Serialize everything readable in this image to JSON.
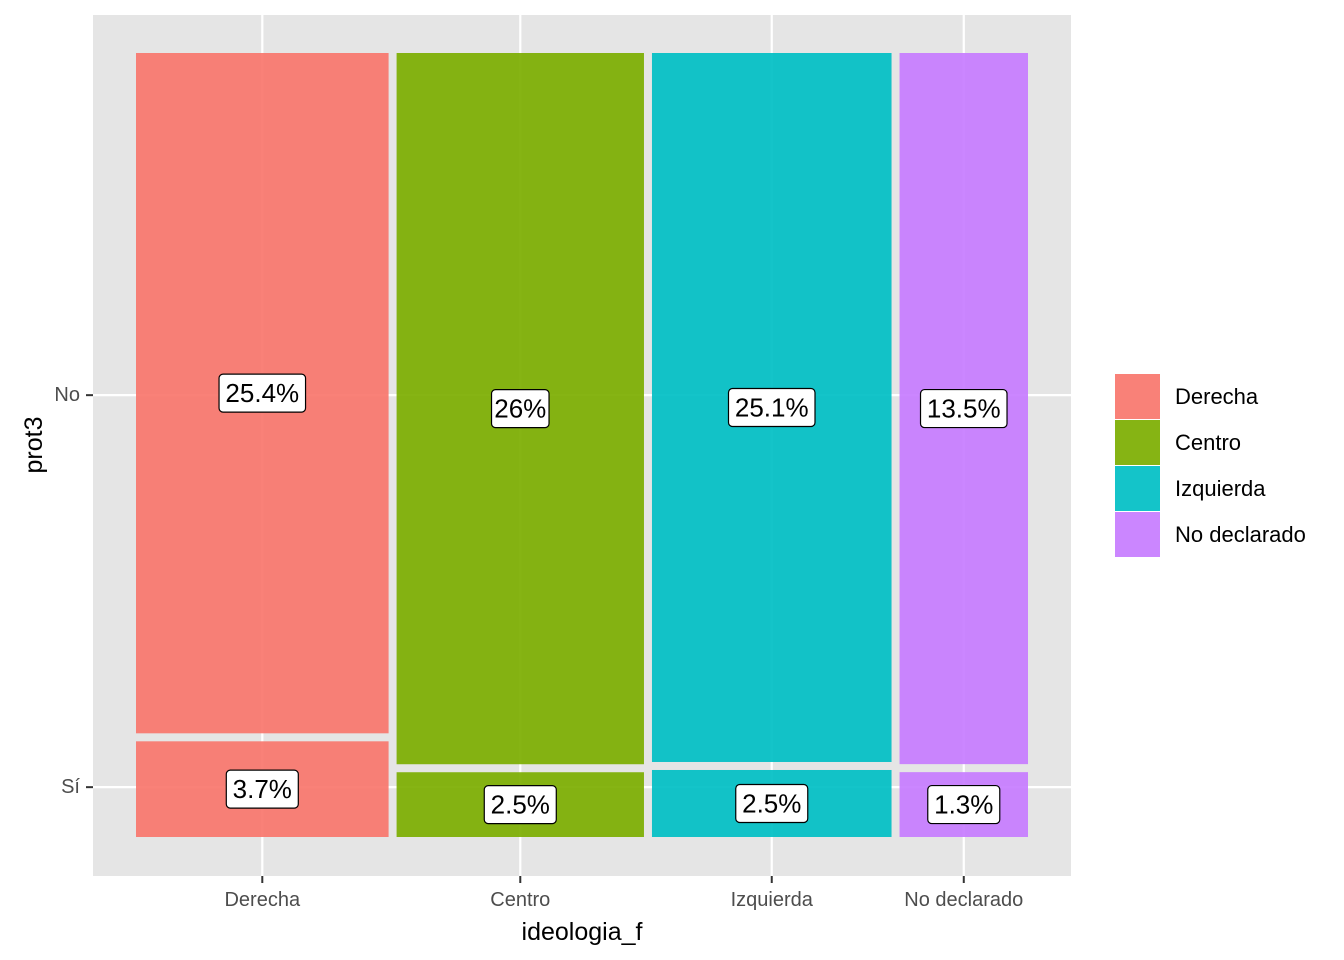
{
  "chart_data": {
    "type": "mosaic",
    "xlabel": "ideologia_f",
    "ylabel": "prot3",
    "categories": [
      "Derecha",
      "Centro",
      "Izquierda",
      "No declarado"
    ],
    "y_levels": [
      "No",
      "Sí"
    ],
    "cells": [
      {
        "category": "Derecha",
        "level": "No",
        "percent": 25.4,
        "label": "25.4%"
      },
      {
        "category": "Derecha",
        "level": "Sí",
        "percent": 3.7,
        "label": "3.7%"
      },
      {
        "category": "Centro",
        "level": "No",
        "percent": 26.0,
        "label": "26%"
      },
      {
        "category": "Centro",
        "level": "Sí",
        "percent": 2.5,
        "label": "2.5%"
      },
      {
        "category": "Izquierda",
        "level": "No",
        "percent": 25.1,
        "label": "25.1%"
      },
      {
        "category": "Izquierda",
        "level": "Sí",
        "percent": 2.5,
        "label": "2.5%"
      },
      {
        "category": "No declarado",
        "level": "No",
        "percent": 13.5,
        "label": "13.5%"
      },
      {
        "category": "No declarado",
        "level": "Sí",
        "percent": 1.3,
        "label": "1.3%"
      }
    ],
    "legend": {
      "position": "right",
      "entries": [
        "Derecha",
        "Centro",
        "Izquierda",
        "No declarado"
      ]
    },
    "colors": {
      "Derecha": "#F8766D",
      "Centro": "#7CAE00",
      "Izquierda": "#00BFC4",
      "No declarado": "#C77CFF"
    },
    "panel_background": "#EBEBEB",
    "grid": true
  }
}
